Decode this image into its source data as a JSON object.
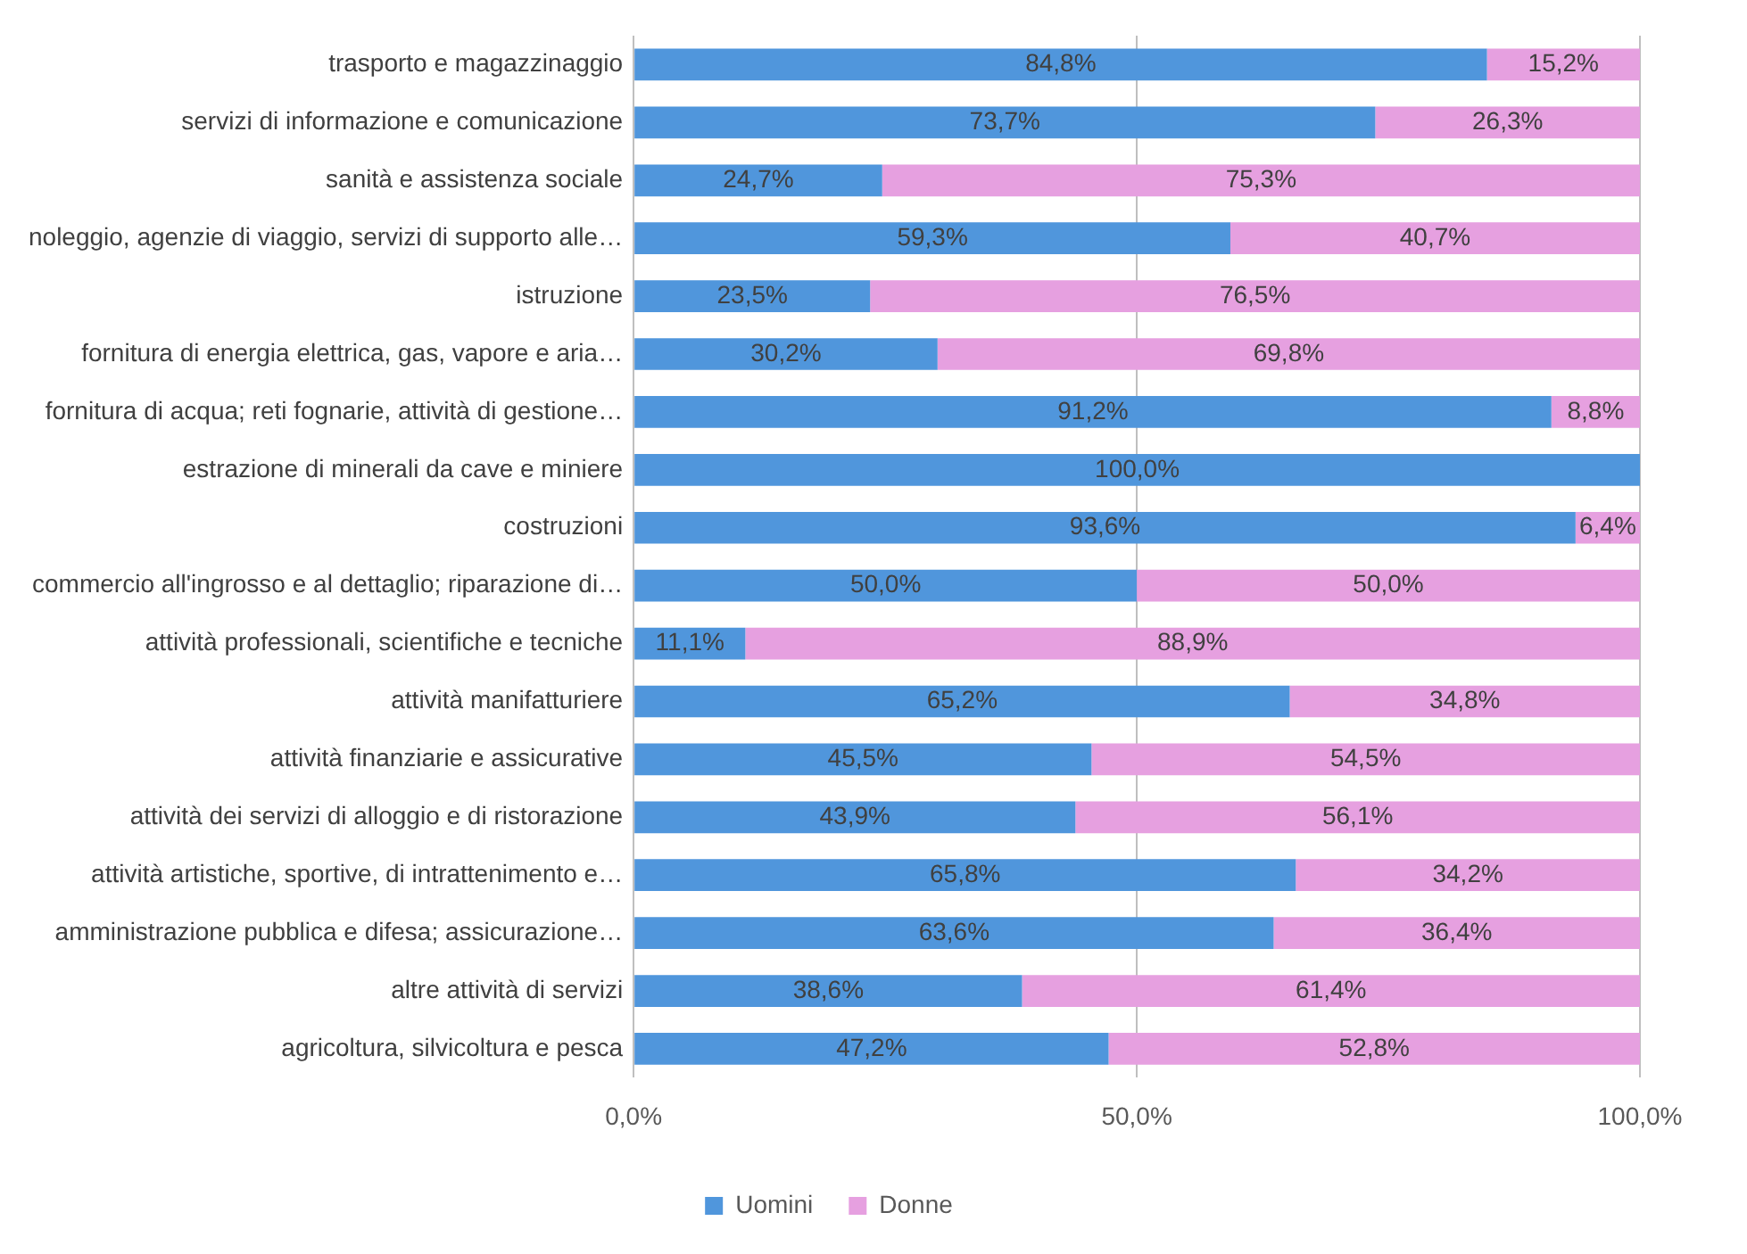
{
  "chart_data": {
    "type": "bar",
    "orientation": "horizontal",
    "stacked": true,
    "grid": "x",
    "legend": "bottom",
    "categories": [
      "trasporto e magazzinaggio",
      "servizi di informazione e comunicazione",
      "sanità e assistenza sociale",
      "noleggio, agenzie di viaggio, servizi di supporto alle…",
      "istruzione",
      "fornitura di energia elettrica, gas, vapore e aria…",
      "fornitura di acqua; reti fognarie, attività di gestione…",
      "estrazione di minerali da cave e miniere",
      "costruzioni",
      "commercio all'ingrosso e al dettaglio; riparazione di…",
      "attività professionali, scientifiche e tecniche",
      "attività manifatturiere",
      "attività finanziarie e assicurative",
      "attività dei servizi di alloggio e di ristorazione",
      "attività artistiche, sportive, di intrattenimento e…",
      "amministrazione pubblica e difesa; assicurazione…",
      "altre attività di servizi",
      "agricoltura, silvicoltura e pesca"
    ],
    "xlim": [
      0,
      100
    ],
    "xticks": [
      {
        "value": 0,
        "label": "0,0%"
      },
      {
        "value": 50,
        "label": "50,0%"
      },
      {
        "value": 100,
        "label": "100,0%"
      }
    ],
    "series": [
      {
        "name": "Uomini",
        "color": "#5096dc",
        "values": [
          84.8,
          73.7,
          24.7,
          59.3,
          23.5,
          30.2,
          91.2,
          100,
          93.6,
          50,
          11.1,
          65.2,
          45.5,
          43.9,
          65.8,
          63.6,
          38.6,
          47.2
        ],
        "value_labels": [
          "84,8%",
          "73,7%",
          "24,7%",
          "59,3%",
          "23,5%",
          "30,2%",
          "91,2%",
          "100,0%",
          "93,6%",
          "50,0%",
          "11,1%",
          "65,2%",
          "45,5%",
          "43,9%",
          "65,8%",
          "63,6%",
          "38,6%",
          "47,2%"
        ]
      },
      {
        "name": "Donne",
        "color": "#e6a0e0",
        "values": [
          15.2,
          26.3,
          75.3,
          40.7,
          76.5,
          69.8,
          8.8,
          0,
          6.4,
          50,
          88.9,
          34.8,
          54.5,
          56.1,
          34.2,
          36.4,
          61.4,
          52.8
        ],
        "value_labels": [
          "15,2%",
          "26,3%",
          "75,3%",
          "40,7%",
          "76,5%",
          "69,8%",
          "8,8%",
          null,
          "6,4%",
          "50,0%",
          "88,9%",
          "34,8%",
          "54,5%",
          "56,1%",
          "34,2%",
          "36,4%",
          "61,4%",
          "52,8%"
        ]
      }
    ]
  }
}
